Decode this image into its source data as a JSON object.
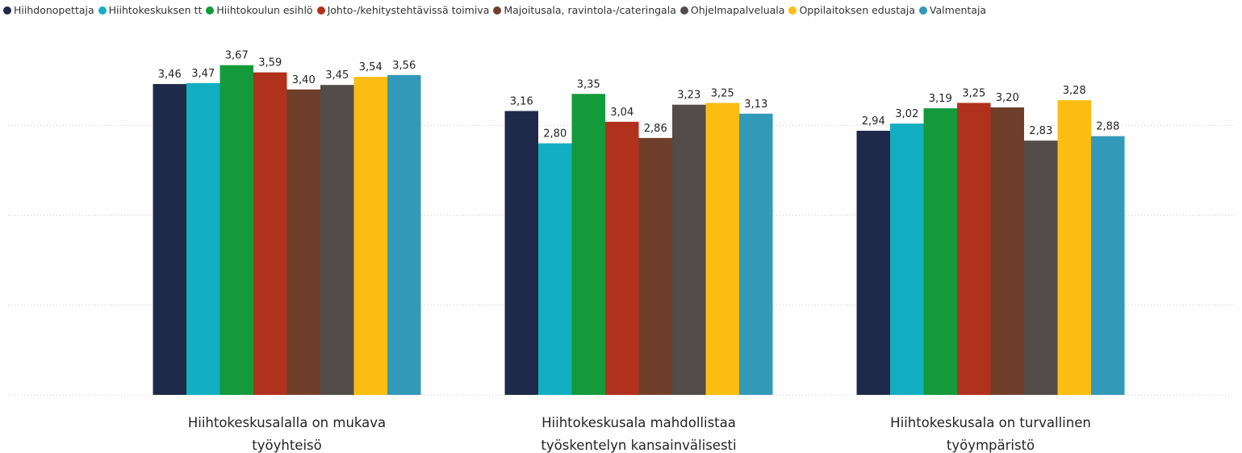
{
  "chart_data": {
    "type": "bar",
    "categories": [
      "Hiihtokeskusalalla on mukava työyhteisö",
      "Hiihtokeskusala mahdollistaa työskentelyn kansainvälisesti",
      "Hiihtokeskusala on turvallinen työympäristö"
    ],
    "series": [
      {
        "name": "Hiihdonopettaja",
        "color": "#1f2a4a",
        "values": [
          3.46,
          3.16,
          2.94
        ],
        "value_labels": [
          "3,46",
          "3,16",
          "2,94"
        ]
      },
      {
        "name": "Hiihtokeskuksen tt",
        "color": "#12aec2",
        "values": [
          3.47,
          2.8,
          3.02
        ],
        "value_labels": [
          "3,47",
          "2,80",
          "3,02"
        ]
      },
      {
        "name": "Hiihtokoulun esihlö",
        "color": "#139a3a",
        "values": [
          3.67,
          3.35,
          3.19
        ],
        "value_labels": [
          "3,67",
          "3,35",
          "3,19"
        ]
      },
      {
        "name": "Johto-/kehitystehtävissä toimiva",
        "color": "#b0311c",
        "values": [
          3.59,
          3.04,
          3.25
        ],
        "value_labels": [
          "3,59",
          "3,04",
          "3,25"
        ]
      },
      {
        "name": "Majoitusala, ravintola-/cateringala",
        "color": "#703f2b",
        "values": [
          3.4,
          2.86,
          3.2
        ],
        "value_labels": [
          "3,40",
          "2,86",
          "3,20"
        ]
      },
      {
        "name": "Ohjelmapalveluala",
        "color": "#524c4a",
        "values": [
          3.45,
          3.23,
          2.83
        ],
        "value_labels": [
          "3,45",
          "3,23",
          "2,83"
        ]
      },
      {
        "name": "Oppilaitoksen edustaja",
        "color": "#fbbd12",
        "values": [
          3.54,
          3.25,
          3.28
        ],
        "value_labels": [
          "3,54",
          "3,25",
          "3,28"
        ]
      },
      {
        "name": "Valmentaja",
        "color": "#3399b8",
        "values": [
          3.56,
          3.13,
          2.88
        ],
        "value_labels": [
          "3,56",
          "3,13",
          "2,88"
        ]
      }
    ],
    "ylim": [
      0,
      4
    ],
    "yticks": [
      0,
      1,
      2,
      3
    ],
    "grid": true,
    "legend": "top"
  }
}
